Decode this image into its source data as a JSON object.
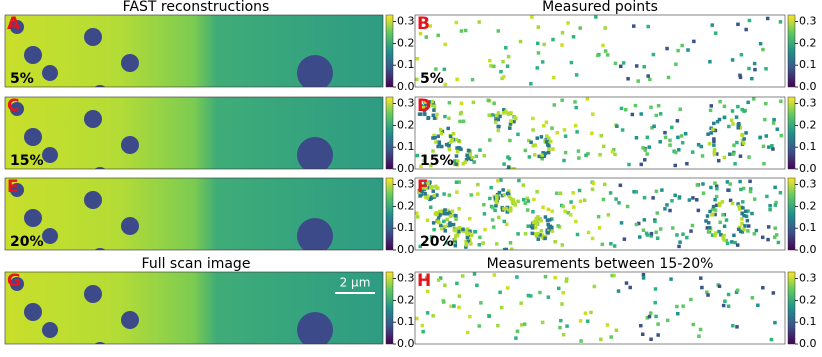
{
  "titles": {
    "left": "FAST reconstructions",
    "right": "Measured points",
    "left_bottom": "Full scan image",
    "right_bottom": "Measurements between 15-20%"
  },
  "panels": [
    {
      "label": "A",
      "annotation": "5%"
    },
    {
      "label": "B",
      "annotation": "5%"
    },
    {
      "label": "C",
      "annotation": "15%"
    },
    {
      "label": "D",
      "annotation": "15%"
    },
    {
      "label": "E",
      "annotation": "20%"
    },
    {
      "label": "F",
      "annotation": "20%"
    },
    {
      "label": "G",
      "scale_bar": "2 µm"
    },
    {
      "label": "H"
    }
  ],
  "colorbar": {
    "clim": [
      0,
      0.33
    ],
    "ticks": [
      {
        "value": 0,
        "label": "0.0"
      },
      0.1,
      0.2,
      0.3
    ]
  }
}
